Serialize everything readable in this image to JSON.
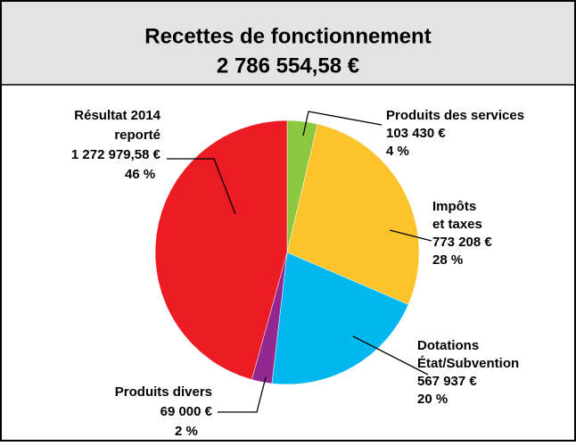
{
  "chart_data": {
    "type": "pie",
    "title": "Recettes de fonctionnement",
    "subtitle": "2 786 554,58 €",
    "categories": [
      [
        "Produits des services"
      ],
      [
        "Impôts",
        "et taxes"
      ],
      [
        "Dotations",
        "État/Subvention"
      ],
      [
        "Produits divers"
      ],
      [
        "Résultat 2014",
        "reporté"
      ]
    ],
    "values": [
      103430,
      773208,
      567937,
      69000,
      1272979.58
    ],
    "value_labels": [
      "103 430 €",
      "773 208 €",
      "567 937 €",
      "69 000 €",
      "1 272 979,58 €"
    ],
    "percent_labels": [
      "4 %",
      "28 %",
      "20 %",
      "2 %",
      "46 %"
    ],
    "colors": [
      "#8dc63f",
      "#fdc32b",
      "#00b7ef",
      "#92278f",
      "#ed1c24"
    ]
  }
}
